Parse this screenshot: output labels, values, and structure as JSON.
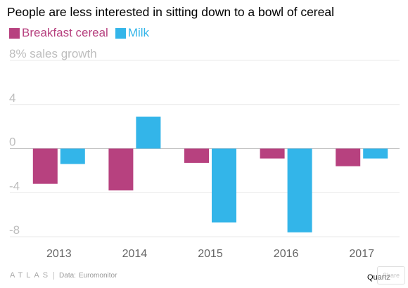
{
  "title": "People are less interested in sitting down to a bowl of cereal",
  "legend": [
    {
      "label": "Breakfast cereal",
      "color": "#b7417f"
    },
    {
      "label": "Milk",
      "color": "#33b5e9"
    }
  ],
  "footer": {
    "logo": "ATLAS",
    "data_label": "Data:",
    "source": "Euromonitor",
    "brand": "Quartz",
    "share_label": "Share"
  },
  "chart_data": {
    "type": "bar",
    "categories": [
      "2013",
      "2014",
      "2015",
      "2016",
      "2017"
    ],
    "series": [
      {
        "name": "Breakfast cereal",
        "color": "#b7417f",
        "values": [
          -3.2,
          -3.8,
          -1.3,
          -0.9,
          -1.6
        ]
      },
      {
        "name": "Milk",
        "color": "#33b5e9",
        "values": [
          -1.4,
          2.9,
          -6.7,
          -7.6,
          -0.9
        ]
      }
    ],
    "ylim": [
      -8,
      8
    ],
    "yticks": [
      -8,
      -4,
      0,
      4,
      8
    ],
    "ytick_labels": [
      "-8",
      "-4",
      "0",
      "4",
      "8% sales growth"
    ],
    "grid": true,
    "legend_position": "top-left"
  }
}
